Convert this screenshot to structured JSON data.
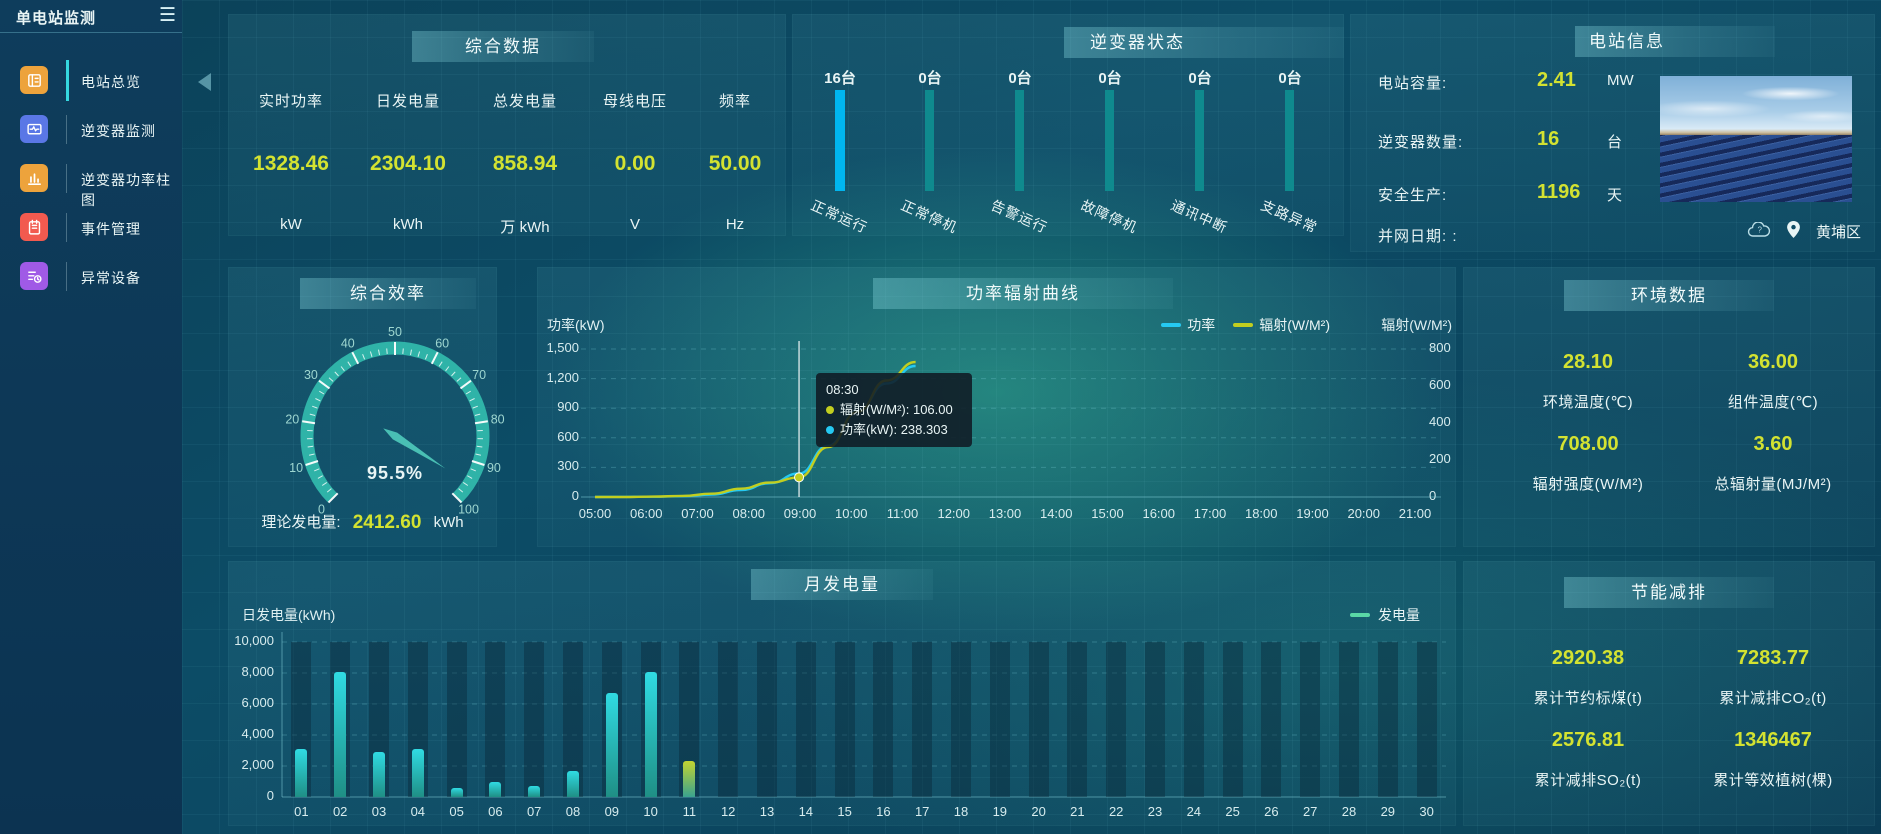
{
  "colors": {
    "accent_yellow": "#d3e231",
    "power_line": "#25c9f2",
    "radiation_line": "#c2ce1f",
    "generation_legend": "#5ad8a6",
    "inverter_running": "#00b6f0",
    "inverter_idle": "#0f8a8e",
    "gauge_band": "#2fb3a8"
  },
  "sidebar": {
    "title": "单电站监测",
    "items": [
      {
        "label": "电站总览",
        "icon": "station-overview",
        "color": "#eda33c",
        "active": true
      },
      {
        "label": "逆变器监测",
        "icon": "inverter-monitor",
        "color": "#5a77e6",
        "active": false
      },
      {
        "label": "逆变器功率柱图",
        "icon": "inverter-power-bars",
        "color": "#eda33c",
        "active": false
      },
      {
        "label": "事件管理",
        "icon": "event-management",
        "color": "#f25a4f",
        "active": false
      },
      {
        "label": "异常设备",
        "icon": "abnormal-device",
        "color": "#a05ae6",
        "active": false
      }
    ]
  },
  "panels": {
    "summary": {
      "title": "综合数据",
      "metrics": [
        {
          "label": "实时功率",
          "value": "1328.46",
          "unit": "kW"
        },
        {
          "label": "日发电量",
          "value": "2304.10",
          "unit": "kWh"
        },
        {
          "label": "总发电量",
          "value": "858.94",
          "unit": "万 kWh"
        },
        {
          "label": "母线电压",
          "value": "0.00",
          "unit": "V"
        },
        {
          "label": "频率",
          "value": "50.00",
          "unit": "Hz"
        }
      ]
    },
    "inverter_status": {
      "title": "逆变器状态",
      "bars": [
        {
          "count": "16台",
          "label": "正常运行",
          "highlight": true
        },
        {
          "count": "0台",
          "label": "正常停机",
          "highlight": false
        },
        {
          "count": "0台",
          "label": "告警运行",
          "highlight": false
        },
        {
          "count": "0台",
          "label": "故障停机",
          "highlight": false
        },
        {
          "count": "0台",
          "label": "通讯中断",
          "highlight": false
        },
        {
          "count": "0台",
          "label": "支路异常",
          "highlight": false
        }
      ]
    },
    "station_info": {
      "title": "电站信息",
      "rows": [
        {
          "label": "电站容量:",
          "value": "2.41",
          "unit": "MW"
        },
        {
          "label": "逆变器数量:",
          "value": "16",
          "unit": "台"
        },
        {
          "label": "安全生产:",
          "value": "1196",
          "unit": "天"
        },
        {
          "label": "并网日期: ",
          "value": ":",
          "unit": ""
        }
      ],
      "location": "黄埔区"
    },
    "efficiency": {
      "theoretical_label": "理论发电量:",
      "theoretical_value": "2412.60",
      "theoretical_unit": "kWh"
    },
    "environment": {
      "title": "环境数据",
      "metrics": [
        {
          "value": "28.10",
          "label": "环境温度(℃)"
        },
        {
          "value": "36.00",
          "label": "组件温度(℃)"
        },
        {
          "value": "708.00",
          "label": "辐射强度(W/M²)"
        },
        {
          "value": "3.60",
          "label": "总辐射量(MJ/M²)"
        }
      ]
    },
    "energy_saving": {
      "title": "节能减排",
      "metrics": [
        {
          "value": "2920.38",
          "label": "累计节约标煤(t)"
        },
        {
          "value": "7283.77",
          "label": "累计减排CO₂(t)"
        },
        {
          "value": "2576.81",
          "label": "累计减排SO₂(t)"
        },
        {
          "value": "1346467",
          "label": "累计等效植树(棵)"
        }
      ]
    }
  },
  "chart_data": [
    {
      "type": "line",
      "title": "功率辐射曲线",
      "x": [
        "05:00",
        "05:30",
        "06:00",
        "06:30",
        "07:00",
        "07:30",
        "08:00",
        "08:30",
        "09:00",
        "09:30",
        "10:00",
        "10:30"
      ],
      "x_axis_labels": [
        "05:00",
        "06:00",
        "07:00",
        "08:00",
        "09:00",
        "10:00",
        "11:00",
        "12:00",
        "13:00",
        "14:00",
        "15:00",
        "16:00",
        "17:00",
        "18:00",
        "19:00",
        "20:00",
        "21:00"
      ],
      "series": [
        {
          "name": "功率",
          "color": "#25c9f2",
          "axis": "left",
          "values": [
            0,
            1,
            3,
            8,
            25,
            70,
            140,
            238.303,
            520,
            870,
            1150,
            1328
          ]
        },
        {
          "name": "辐射(W/M²)",
          "color": "#c2ce1f",
          "axis": "right",
          "values": [
            0,
            0,
            2,
            6,
            18,
            45,
            78,
            106,
            270,
            460,
            630,
            730
          ]
        }
      ],
      "left_axis": {
        "label": "功率(kW)",
        "ticks": [
          "1,500",
          "1,200",
          "900",
          "600",
          "300",
          "0"
        ],
        "max": 1500
      },
      "right_axis": {
        "label": "辐射(W/M²)",
        "ticks": [
          "800",
          "600",
          "400",
          "200",
          "0"
        ],
        "max": 800
      },
      "grid": true,
      "legend_position": "top-right",
      "tooltip": {
        "time": "08:30",
        "x_index": 7,
        "items": [
          {
            "text": "辐射(W/M²): 106.00",
            "color": "#c2ce1f"
          },
          {
            "text": "功率(kW): 238.303",
            "color": "#25c9f2"
          }
        ]
      }
    },
    {
      "type": "bar",
      "title": "月发电量",
      "legend": "发电量",
      "ylabel": "日发电量(kWh)",
      "yticks": [
        "10,000",
        "8,000",
        "6,000",
        "4,000",
        "2,000",
        "0"
      ],
      "ymax": 10000,
      "today_index": 10,
      "categories": [
        "01",
        "02",
        "03",
        "04",
        "05",
        "06",
        "07",
        "08",
        "09",
        "10",
        "11",
        "12",
        "13",
        "14",
        "15",
        "16",
        "17",
        "18",
        "19",
        "20",
        "21",
        "22",
        "23",
        "24",
        "25",
        "26",
        "27",
        "28",
        "29",
        "30"
      ],
      "values": [
        3100,
        8050,
        2900,
        3100,
        600,
        950,
        700,
        1650,
        6700,
        8050,
        2300,
        0,
        0,
        0,
        0,
        0,
        0,
        0,
        0,
        0,
        0,
        0,
        0,
        0,
        0,
        0,
        0,
        0,
        0,
        0
      ]
    },
    {
      "type": "gauge",
      "title": "综合效率",
      "value": 95.5,
      "display": "95.5%",
      "min": 0,
      "max": 100,
      "tick_labels": [
        0,
        10,
        20,
        30,
        40,
        50,
        60,
        70,
        80,
        90,
        100
      ]
    }
  ]
}
